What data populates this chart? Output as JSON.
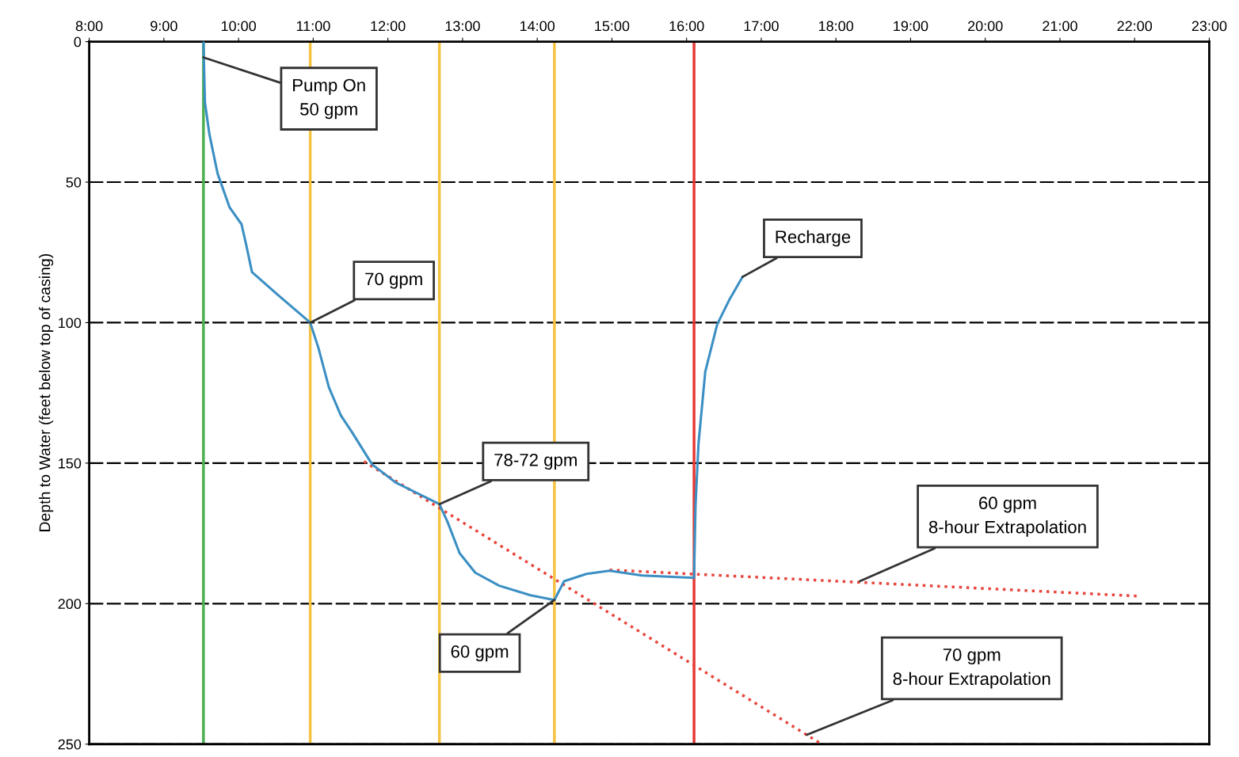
{
  "chart_data": {
    "type": "line",
    "ylabel": "Depth to Water (feet below top of casing)",
    "xlim": [
      8,
      23
    ],
    "ylim": [
      250,
      0
    ],
    "xticks": [
      {
        "value": 8,
        "label": "8:00"
      },
      {
        "value": 9,
        "label": "9:00"
      },
      {
        "value": 10,
        "label": "10:00"
      },
      {
        "value": 11,
        "label": "11:00"
      },
      {
        "value": 12,
        "label": "12:00"
      },
      {
        "value": 13,
        "label": "13:00"
      },
      {
        "value": 14,
        "label": "14:00"
      },
      {
        "value": 15,
        "label": "15:00"
      },
      {
        "value": 16,
        "label": "16:00"
      },
      {
        "value": 17,
        "label": "17:00"
      },
      {
        "value": 18,
        "label": "18:00"
      },
      {
        "value": 19,
        "label": "19:00"
      },
      {
        "value": 20,
        "label": "20:00"
      },
      {
        "value": 21,
        "label": "21:00"
      },
      {
        "value": 22,
        "label": "22:00"
      },
      {
        "value": 23,
        "label": "23:00"
      }
    ],
    "yticks": [
      0,
      50,
      100,
      150,
      200,
      250
    ],
    "grid": "y",
    "legend": false,
    "series": [
      {
        "color": "#3b8fc4",
        "line_style": "solid",
        "x": [
          9.53,
          9.55,
          9.61,
          9.72,
          9.88,
          10.04,
          10.1,
          10.18,
          10.52,
          10.96,
          11.07,
          11.21,
          11.37,
          11.52,
          11.79,
          12.11,
          12.69,
          12.8,
          12.96,
          13.17,
          13.49,
          13.91,
          14.23,
          14.36,
          14.66,
          14.97,
          15.4,
          16.1,
          16.12,
          16.16,
          16.25,
          16.41,
          16.57,
          16.75
        ],
        "values": [
          0,
          21.7,
          33,
          47,
          59,
          65,
          72,
          82,
          90,
          100,
          109,
          123,
          133,
          139,
          150.5,
          157,
          164.6,
          171,
          182,
          189,
          193.6,
          197,
          198.7,
          192,
          189.4,
          188.3,
          190,
          190.8,
          165,
          143,
          117.5,
          100.6,
          92,
          83.7
        ]
      },
      {
        "color": "#e8453c",
        "line_style": "dotted",
        "x": [
          11.68,
          17.81
        ],
        "values": [
          149.4,
          250
        ]
      },
      {
        "color": "#e8453c",
        "line_style": "dotted",
        "x": [
          14.97,
          22.03
        ],
        "values": [
          188,
          197.3
        ]
      }
    ],
    "ref_lines": [
      {
        "axis": "x",
        "value": 9.53,
        "color": "#4caf50"
      },
      {
        "axis": "x",
        "value": 10.96,
        "color": "#f5c242"
      },
      {
        "axis": "x",
        "value": 12.69,
        "color": "#f5c242"
      },
      {
        "axis": "x",
        "value": 14.23,
        "color": "#f5c242"
      },
      {
        "axis": "x",
        "value": 16.1,
        "color": "#e53935"
      }
    ],
    "annotations": [
      {
        "text": "Pump On\n50 gpm",
        "x": 9.53,
        "y": 5.6
      },
      {
        "text": "70 gpm",
        "x": 10.96,
        "y": 100
      },
      {
        "text": "78-72 gpm",
        "x": 12.69,
        "y": 164.6
      },
      {
        "text": "60 gpm",
        "x": 14.23,
        "y": 198.7
      },
      {
        "text": "Recharge",
        "x": 16.75,
        "y": 83.7
      },
      {
        "text": "60 gpm\n8-hour Extrapolation",
        "x": 18.32,
        "y": 192
      },
      {
        "text": "70 gpm\n8-hour Extrapolation",
        "x": 17.61,
        "y": 246.7
      }
    ]
  }
}
